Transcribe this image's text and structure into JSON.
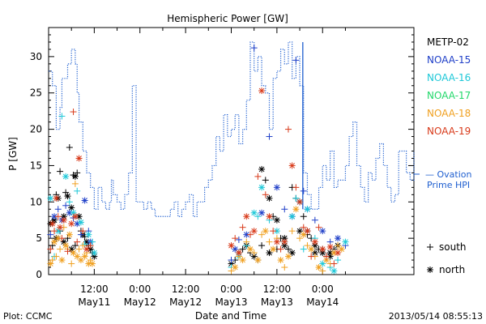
{
  "chart_data": {
    "type": "scatter",
    "title": "Hemispheric Power [GW]",
    "ylabel": "P [GW]",
    "xlabel": "Date and Time",
    "ylim": [
      0,
      34
    ],
    "xlim": [
      0,
      96
    ],
    "y_ticks": [
      0,
      5,
      10,
      15,
      20,
      25,
      30
    ],
    "x_ticks": [
      {
        "x": 12,
        "time": "12:00",
        "date": "May11"
      },
      {
        "x": 24,
        "time": "0:00",
        "date": "May12"
      },
      {
        "x": 36,
        "time": "12:00",
        "date": "May12"
      },
      {
        "x": 48,
        "time": "0:00",
        "date": "May13"
      },
      {
        "x": 60,
        "time": "12:00",
        "date": "May13"
      },
      {
        "x": 72,
        "time": "0:00",
        "date": "May14"
      }
    ],
    "x_minor_ticks": [
      6,
      18,
      30,
      42,
      54,
      66,
      78
    ],
    "legend_placement": "right",
    "markers_legend": [
      {
        "symbol": "+",
        "label": "south"
      },
      {
        "symbol": "*",
        "label": "north"
      }
    ],
    "footer_left": "Plot: CCMC",
    "footer_right": "2013/05/14 08:55:13",
    "ovation": {
      "name": "Ovation Prime HPI",
      "label_line1": "— Ovation",
      "label_line2": "Prime HPI",
      "color": "#1f5fd0",
      "x": [
        0,
        1,
        2,
        3,
        3.5,
        4,
        5,
        6,
        7,
        7.5,
        8,
        9,
        10,
        11,
        12,
        13,
        14,
        15,
        16,
        16.5,
        17,
        18,
        19,
        20,
        21,
        22,
        23,
        24,
        25,
        26,
        27,
        28,
        29,
        30,
        31,
        32,
        33,
        34,
        35,
        36,
        37,
        38,
        39,
        40,
        41,
        42,
        43,
        44,
        45,
        46,
        47,
        48,
        49,
        50,
        51,
        52,
        53,
        54,
        55,
        56,
        57,
        58,
        59,
        60,
        61,
        62,
        63,
        64,
        65,
        66,
        67,
        68,
        69,
        70,
        71,
        72,
        73,
        74,
        75,
        76,
        77,
        78,
        79,
        80,
        81,
        82,
        83,
        84,
        85,
        86,
        87,
        88,
        89,
        90,
        91,
        92,
        93,
        94,
        95,
        96
      ],
      "y": [
        28,
        26,
        20,
        23,
        27,
        27,
        29,
        31,
        29,
        25,
        21,
        17,
        14,
        12,
        9,
        12,
        10,
        9,
        10,
        13,
        11,
        10,
        9,
        11,
        14,
        26,
        10,
        10,
        9,
        10,
        9,
        8,
        8,
        8,
        8,
        9,
        10,
        8,
        9,
        10,
        11,
        8,
        10,
        10,
        12,
        13,
        15,
        19,
        17,
        22,
        19,
        20,
        22,
        18,
        20,
        24,
        32,
        28,
        30,
        26,
        25,
        20,
        27,
        28,
        31,
        29,
        32,
        27,
        30,
        26,
        14,
        11,
        9,
        9,
        12,
        15,
        13,
        17,
        12,
        13,
        13,
        15,
        19,
        21,
        15,
        12,
        10,
        14,
        13,
        16,
        18,
        15,
        12,
        10,
        11,
        17,
        17,
        14,
        13,
        17
      ]
    },
    "series": [
      {
        "name": "METP-02",
        "color": "#000000",
        "points": [
          [
            0.5,
            7
          ],
          [
            1,
            7.2
          ],
          [
            1.5,
            7.5
          ],
          [
            2,
            11
          ],
          [
            2.5,
            10.5
          ],
          [
            3,
            14.2
          ],
          [
            4,
            8
          ],
          [
            4.5,
            11.3
          ],
          [
            5,
            10.8
          ],
          [
            5.5,
            17.5
          ],
          [
            6,
            9.2
          ],
          [
            6.5,
            13.7
          ],
          [
            7,
            13.5
          ],
          [
            7.5,
            14
          ],
          [
            8,
            8
          ],
          [
            8.5,
            6
          ],
          [
            9,
            5.5
          ],
          [
            9.5,
            5.2
          ],
          [
            10,
            4.5
          ],
          [
            10.5,
            4
          ],
          [
            11,
            3.5
          ],
          [
            11.5,
            3
          ],
          [
            12,
            2.5
          ],
          [
            1,
            4
          ],
          [
            2,
            5
          ],
          [
            3,
            6
          ],
          [
            4,
            4.5
          ],
          [
            5,
            5
          ],
          [
            6,
            3.5
          ],
          [
            7,
            4
          ],
          [
            48,
            1.5
          ],
          [
            49,
            2
          ],
          [
            50,
            3
          ],
          [
            51,
            3.5
          ],
          [
            52,
            4
          ],
          [
            53,
            3
          ],
          [
            54,
            2.5
          ],
          [
            55,
            2
          ],
          [
            56,
            14.5
          ],
          [
            57,
            13
          ],
          [
            58,
            10.5
          ],
          [
            59,
            8
          ],
          [
            60,
            7.5
          ],
          [
            61,
            5
          ],
          [
            62,
            4
          ],
          [
            63,
            3.5
          ],
          [
            64,
            3
          ],
          [
            65,
            10.5
          ],
          [
            66,
            10
          ],
          [
            67,
            8
          ],
          [
            68,
            6
          ],
          [
            69,
            5
          ],
          [
            70,
            4
          ],
          [
            71,
            3.5
          ],
          [
            72,
            3
          ],
          [
            73,
            2.5
          ],
          [
            74,
            3
          ],
          [
            75,
            3.5
          ],
          [
            76,
            4
          ],
          [
            56,
            4
          ],
          [
            58,
            3
          ],
          [
            60,
            3.5
          ],
          [
            62,
            5
          ],
          [
            64,
            12
          ],
          [
            66,
            6
          ],
          [
            68,
            5.5
          ],
          [
            70,
            3
          ],
          [
            72,
            3.5
          ],
          [
            74,
            2.5
          ]
        ]
      },
      {
        "name": "NOAA-15",
        "color": "#1f3fc8",
        "points": [
          [
            0.5,
            5.5
          ],
          [
            1.5,
            8
          ],
          [
            2.5,
            9
          ],
          [
            3.5,
            7.5
          ],
          [
            4.5,
            9.5
          ],
          [
            5.5,
            8.5
          ],
          [
            6.5,
            7.8
          ],
          [
            7.5,
            7
          ],
          [
            8.5,
            5.5
          ],
          [
            9.5,
            10.2
          ],
          [
            10.5,
            6
          ],
          [
            11,
            4.5
          ],
          [
            48,
            2
          ],
          [
            49,
            3.5
          ],
          [
            50,
            4.8
          ],
          [
            52,
            5.5
          ],
          [
            54,
            31.2
          ],
          [
            56,
            8.5
          ],
          [
            58,
            19
          ],
          [
            60,
            12
          ],
          [
            62,
            9
          ],
          [
            64,
            8
          ],
          [
            65,
            29.5
          ],
          [
            66,
            10
          ],
          [
            67,
            11.5
          ],
          [
            68,
            9
          ],
          [
            70,
            7.5
          ],
          [
            72,
            6
          ],
          [
            74,
            4.5
          ],
          [
            76,
            5
          ],
          [
            78,
            4
          ]
        ]
      },
      {
        "name": "NOAA-16",
        "color": "#1ec8d8",
        "points": [
          [
            0.5,
            10.5
          ],
          [
            1.5,
            2.5
          ],
          [
            2.5,
            6
          ],
          [
            3.5,
            21.8
          ],
          [
            4.5,
            13.5
          ],
          [
            5.5,
            10
          ],
          [
            6.5,
            8.5
          ],
          [
            7.5,
            11.5
          ],
          [
            8.5,
            7.2
          ],
          [
            9.5,
            4.2
          ],
          [
            10.5,
            5.5
          ],
          [
            11.5,
            4.5
          ],
          [
            12,
            3
          ],
          [
            48,
            1
          ],
          [
            50,
            2.5
          ],
          [
            52,
            4
          ],
          [
            54,
            8.5
          ],
          [
            55,
            8
          ],
          [
            56,
            12
          ],
          [
            58,
            7.5
          ],
          [
            60,
            6
          ],
          [
            62,
            4.5
          ],
          [
            64,
            8
          ],
          [
            65,
            10.5
          ],
          [
            66,
            10
          ],
          [
            67,
            3.5
          ],
          [
            68,
            9
          ],
          [
            70,
            5
          ],
          [
            72,
            1.5
          ],
          [
            74,
            1
          ],
          [
            75,
            0.5
          ],
          [
            76,
            2
          ],
          [
            78,
            4.5
          ]
        ]
      },
      {
        "name": "NOAA-17",
        "color": "#22d86a",
        "points": []
      },
      {
        "name": "NOAA-18",
        "color": "#f0a020",
        "points": [
          [
            0.5,
            1.5
          ],
          [
            1,
            2
          ],
          [
            1.5,
            4.5
          ],
          [
            2,
            2.5
          ],
          [
            2.5,
            5
          ],
          [
            3,
            3.5
          ],
          [
            3.5,
            2
          ],
          [
            4,
            6.5
          ],
          [
            4.5,
            4
          ],
          [
            5,
            3.5
          ],
          [
            5.5,
            5.5
          ],
          [
            6,
            1.5
          ],
          [
            6.5,
            3
          ],
          [
            7,
            12.5
          ],
          [
            7.5,
            2.5
          ],
          [
            8,
            3.5
          ],
          [
            8.5,
            2
          ],
          [
            9,
            4
          ],
          [
            9.5,
            2.5
          ],
          [
            10,
            3
          ],
          [
            10.5,
            1.5
          ],
          [
            11,
            2
          ],
          [
            11.5,
            1.5
          ],
          [
            48,
            0.5
          ],
          [
            49,
            1
          ],
          [
            50,
            2.5
          ],
          [
            51,
            2
          ],
          [
            52,
            4.5
          ],
          [
            53,
            3.5
          ],
          [
            54,
            3
          ],
          [
            55,
            2
          ],
          [
            56,
            5.5
          ],
          [
            57,
            6
          ],
          [
            58,
            4.5
          ],
          [
            59,
            3.5
          ],
          [
            60,
            5
          ],
          [
            61,
            2
          ],
          [
            62,
            1
          ],
          [
            63,
            2.5
          ],
          [
            64,
            6
          ],
          [
            65,
            9
          ],
          [
            66,
            5
          ],
          [
            67,
            5.5
          ],
          [
            68,
            4
          ],
          [
            69,
            3.5
          ],
          [
            70,
            2.5
          ],
          [
            71,
            1
          ],
          [
            72,
            0.5
          ],
          [
            73,
            2
          ],
          [
            74,
            1.5
          ],
          [
            75,
            3
          ],
          [
            76,
            4
          ],
          [
            77,
            3.5
          ]
        ]
      },
      {
        "name": "NOAA-19",
        "color": "#d83a1a",
        "points": [
          [
            0.5,
            3.5
          ],
          [
            1,
            7
          ],
          [
            1.5,
            6
          ],
          [
            2,
            10.5
          ],
          [
            2.5,
            8
          ],
          [
            3,
            6.5
          ],
          [
            3.5,
            5
          ],
          [
            4,
            7.5
          ],
          [
            5,
            3.2
          ],
          [
            6,
            7
          ],
          [
            6.5,
            22.4
          ],
          [
            7,
            8
          ],
          [
            7.5,
            4.5
          ],
          [
            8,
            16
          ],
          [
            9,
            6
          ],
          [
            10,
            3.5
          ],
          [
            11,
            4
          ],
          [
            48,
            4
          ],
          [
            49,
            5
          ],
          [
            50,
            3
          ],
          [
            51,
            6.5
          ],
          [
            52,
            8
          ],
          [
            53,
            5.5
          ],
          [
            54,
            6
          ],
          [
            55,
            13.5
          ],
          [
            56,
            25.3
          ],
          [
            57,
            11
          ],
          [
            58,
            8
          ],
          [
            59,
            6
          ],
          [
            60,
            4.5
          ],
          [
            61,
            3.5
          ],
          [
            62,
            4.5
          ],
          [
            63,
            20
          ],
          [
            64,
            15
          ],
          [
            65,
            12
          ],
          [
            66,
            10
          ],
          [
            67,
            6.5
          ],
          [
            68,
            6
          ],
          [
            69,
            2.5
          ],
          [
            70,
            4.5
          ],
          [
            71,
            6.5
          ],
          [
            72,
            3.5
          ],
          [
            73,
            2.5
          ],
          [
            74,
            3.8
          ],
          [
            75,
            1.5
          ],
          [
            76,
            3
          ]
        ]
      }
    ]
  }
}
